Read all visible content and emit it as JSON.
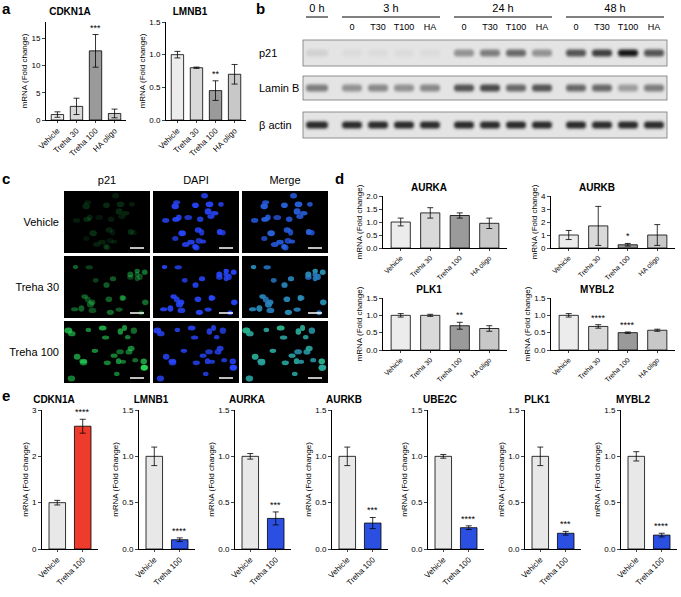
{
  "panel_labels": [
    "a",
    "b",
    "c",
    "d",
    "e"
  ],
  "chart_data": [
    {
      "type": "bar",
      "title": "CDKN1A",
      "y_label": "mRNA (Fold change)",
      "categories": [
        "Vehicle",
        "Treha 30",
        "Treha 100",
        "HA oligo"
      ],
      "values": [
        1.0,
        2.5,
        12.7,
        1.2
      ],
      "errors": [
        0.5,
        1.5,
        3.0,
        0.8
      ],
      "colors": [
        "#ececec",
        "#d9d9d9",
        "#9a9a9a",
        "#c8c8c8"
      ],
      "ylim": [
        0,
        18
      ],
      "yticks": [
        0,
        5,
        10,
        15
      ],
      "annotations": [
        {
          "x": "Treha 100",
          "text": "***"
        }
      ]
    },
    {
      "type": "bar",
      "title": "LMNB1",
      "y_label": "mRNA (Fold change)",
      "categories": [
        "Vehicle",
        "Treha 30",
        "Treha 100",
        "HA oligo"
      ],
      "values": [
        1.0,
        0.8,
        0.45,
        0.7
      ],
      "errors": [
        0.05,
        0.01,
        0.15,
        0.15
      ],
      "colors": [
        "#ececec",
        "#d9d9d9",
        "#9a9a9a",
        "#c8c8c8"
      ],
      "ylim": [
        0,
        1.5
      ],
      "yticks": [
        {
          "value": 0,
          "label": "0.0"
        },
        {
          "value": 0.5,
          "label": "0.5"
        },
        {
          "value": 1,
          "label": "1.0"
        },
        {
          "value": 1.5,
          "label": "1.5"
        }
      ],
      "annotations": [
        {
          "x": "Treha 100",
          "text": "**"
        }
      ]
    },
    {
      "type": "bar",
      "title": "AURKA",
      "y_label": "mRNA (Fold change)",
      "categories": [
        "Vehicle",
        "Treha 30",
        "Treha 100",
        "HA oligo"
      ],
      "values": [
        1.0,
        1.35,
        1.25,
        0.95
      ],
      "errors": [
        0.15,
        0.2,
        0.1,
        0.2
      ],
      "colors": [
        "#ececec",
        "#d9d9d9",
        "#9a9a9a",
        "#c8c8c8"
      ],
      "ylim": [
        0,
        2
      ],
      "yticks": [
        {
          "value": 0,
          "label": "0.0"
        },
        {
          "value": 0.5,
          "label": "0.5"
        },
        {
          "value": 1,
          "label": "1.0"
        },
        {
          "value": 1.5,
          "label": "1.5"
        },
        {
          "value": 2,
          "label": "2.0"
        }
      ],
      "annotations": []
    },
    {
      "type": "bar",
      "title": "AURKB",
      "y_label": "mRNA (Fold change)",
      "categories": [
        "Vehicle",
        "Treha 30",
        "Treha 100",
        "HA oligo"
      ],
      "values": [
        1.0,
        1.7,
        0.25,
        1.0
      ],
      "errors": [
        0.35,
        1.5,
        0.1,
        0.8
      ],
      "colors": [
        "#ececec",
        "#d9d9d9",
        "#9a9a9a",
        "#c8c8c8"
      ],
      "ylim": [
        0,
        4
      ],
      "yticks": [
        0,
        1,
        2,
        3,
        4
      ],
      "annotations": [
        {
          "x": "Treha 100",
          "text": "*"
        }
      ]
    },
    {
      "type": "bar",
      "title": "PLK1",
      "y_label": "mRNA (Fold change)",
      "categories": [
        "Vehicle",
        "Treha 30",
        "Treha 100",
        "HA oligo"
      ],
      "values": [
        1.0,
        1.0,
        0.7,
        0.62
      ],
      "errors": [
        0.05,
        0.03,
        0.1,
        0.08
      ],
      "colors": [
        "#ececec",
        "#d9d9d9",
        "#9a9a9a",
        "#c8c8c8"
      ],
      "ylim": [
        0,
        1.5
      ],
      "yticks": [
        {
          "value": 0,
          "label": "0.0"
        },
        {
          "value": 0.5,
          "label": "0.5"
        },
        {
          "value": 1,
          "label": "1.0"
        },
        {
          "value": 1.5,
          "label": "1.5"
        }
      ],
      "annotations": [
        {
          "x": "Treha 100",
          "text": "**"
        }
      ]
    },
    {
      "type": "bar",
      "title": "MYBL2",
      "y_label": "mRNA (Fold change)",
      "categories": [
        "Vehicle",
        "Treha 30",
        "Treha 100",
        "HA oligo"
      ],
      "values": [
        1.0,
        0.68,
        0.5,
        0.57
      ],
      "errors": [
        0.05,
        0.05,
        0.02,
        0.03
      ],
      "colors": [
        "#ececec",
        "#d9d9d9",
        "#9a9a9a",
        "#c8c8c8"
      ],
      "ylim": [
        0,
        1.5
      ],
      "yticks": [
        {
          "value": 0,
          "label": "0.0"
        },
        {
          "value": 0.5,
          "label": "0.5"
        },
        {
          "value": 1,
          "label": "1.0"
        },
        {
          "value": 1.5,
          "label": "1.5"
        }
      ],
      "annotations": [
        {
          "x": "Treha 30",
          "text": "****"
        },
        {
          "x": "Treha 100",
          "text": "****"
        }
      ]
    },
    {
      "type": "bar",
      "title": "CDKN1A",
      "y_label": "mRNA (Fold change)",
      "categories": [
        "Vehicle",
        "Treha 100"
      ],
      "values": [
        1.0,
        2.65
      ],
      "errors": [
        0.05,
        0.15
      ],
      "colors": [
        "#e8e8e8",
        "#ee3b2b"
      ],
      "ylim": [
        0,
        3
      ],
      "yticks": [
        0,
        1,
        2,
        3
      ],
      "annotations": [
        {
          "x": "Treha 100",
          "text": "****"
        }
      ]
    },
    {
      "type": "bar",
      "title": "LMNB1",
      "y_label": "mRNA (Fold change)",
      "categories": [
        "Vehicle",
        "Treha 100"
      ],
      "values": [
        1.0,
        0.1
      ],
      "errors": [
        0.1,
        0.02
      ],
      "colors": [
        "#e8e8e8",
        "#2b4fe0"
      ],
      "ylim": [
        0,
        1.5
      ],
      "yticks": [
        {
          "value": 0,
          "label": "0.0"
        },
        {
          "value": 0.5,
          "label": "0.5"
        },
        {
          "value": 1,
          "label": "1.0"
        },
        {
          "value": 1.5,
          "label": "1.5"
        }
      ],
      "annotations": [
        {
          "x": "Treha 100",
          "text": "****"
        }
      ]
    },
    {
      "type": "bar",
      "title": "AURKA",
      "y_label": "mRNA (Fold change)",
      "categories": [
        "Vehicle",
        "Treha 100"
      ],
      "values": [
        1.0,
        0.33
      ],
      "errors": [
        0.03,
        0.07
      ],
      "colors": [
        "#e8e8e8",
        "#2b4fe0"
      ],
      "ylim": [
        0,
        1.5
      ],
      "yticks": [
        {
          "value": 0,
          "label": "0.0"
        },
        {
          "value": 0.5,
          "label": "0.5"
        },
        {
          "value": 1,
          "label": "1.0"
        },
        {
          "value": 1.5,
          "label": "1.5"
        }
      ],
      "annotations": [
        {
          "x": "Treha 100",
          "text": "***"
        }
      ]
    },
    {
      "type": "bar",
      "title": "AURKB",
      "y_label": "mRNA (Fold change)",
      "categories": [
        "Vehicle",
        "Treha 100"
      ],
      "values": [
        1.0,
        0.28
      ],
      "errors": [
        0.1,
        0.06
      ],
      "colors": [
        "#e8e8e8",
        "#2b4fe0"
      ],
      "ylim": [
        0,
        1.5
      ],
      "yticks": [
        {
          "value": 0,
          "label": "0.0"
        },
        {
          "value": 0.5,
          "label": "0.5"
        },
        {
          "value": 1,
          "label": "1.0"
        },
        {
          "value": 1.5,
          "label": "1.5"
        }
      ],
      "annotations": [
        {
          "x": "Treha 100",
          "text": "***"
        }
      ]
    },
    {
      "type": "bar",
      "title": "UBE2C",
      "y_label": "mRNA (Fold change)",
      "categories": [
        "Vehicle",
        "Treha 100"
      ],
      "values": [
        1.0,
        0.23
      ],
      "errors": [
        0.02,
        0.02
      ],
      "colors": [
        "#e8e8e8",
        "#2b4fe0"
      ],
      "ylim": [
        0,
        1.5
      ],
      "yticks": [
        {
          "value": 0,
          "label": "0.0"
        },
        {
          "value": 0.5,
          "label": "0.5"
        },
        {
          "value": 1,
          "label": "1.0"
        },
        {
          "value": 1.5,
          "label": "1.5"
        }
      ],
      "annotations": [
        {
          "x": "Treha 100",
          "text": "****"
        }
      ]
    },
    {
      "type": "bar",
      "title": "PLK1",
      "y_label": "mRNA (Fold change)",
      "categories": [
        "Vehicle",
        "Treha 100"
      ],
      "values": [
        1.0,
        0.17
      ],
      "errors": [
        0.1,
        0.02
      ],
      "colors": [
        "#e8e8e8",
        "#2b4fe0"
      ],
      "ylim": [
        0,
        1.5
      ],
      "yticks": [
        {
          "value": 0,
          "label": "0.0"
        },
        {
          "value": 0.5,
          "label": "0.5"
        },
        {
          "value": 1,
          "label": "1.0"
        },
        {
          "value": 1.5,
          "label": "1.5"
        }
      ],
      "annotations": [
        {
          "x": "Treha 100",
          "text": "***"
        }
      ]
    },
    {
      "type": "bar",
      "title": "MYBL2",
      "y_label": "mRNA (Fold change)",
      "categories": [
        "Vehicle",
        "Treha 100"
      ],
      "values": [
        1.0,
        0.15
      ],
      "errors": [
        0.05,
        0.02
      ],
      "colors": [
        "#e8e8e8",
        "#2b4fe0"
      ],
      "ylim": [
        0,
        1.5
      ],
      "yticks": [
        {
          "value": 0,
          "label": "0.0"
        },
        {
          "value": 0.5,
          "label": "0.5"
        },
        {
          "value": 1,
          "label": "1.0"
        },
        {
          "value": 1.5,
          "label": "1.5"
        }
      ],
      "annotations": [
        {
          "x": "Treha 100",
          "text": "****"
        }
      ]
    }
  ],
  "blot": {
    "groups": [
      {
        "label": "0 h",
        "lanes": [
          null
        ]
      },
      {
        "label": "3 h",
        "lanes": [
          "0",
          "T30",
          "T100",
          "HA"
        ]
      },
      {
        "label": "24 h",
        "lanes": [
          "0",
          "T30",
          "T100",
          "HA"
        ]
      },
      {
        "label": "48 h",
        "lanes": [
          "0",
          "T30",
          "T100",
          "HA"
        ]
      }
    ],
    "rows": [
      {
        "label": "p21",
        "intensity": [
          0.1,
          0.05,
          0.05,
          0.05,
          0.05,
          0.4,
          0.5,
          0.6,
          0.4,
          0.7,
          0.8,
          1.0,
          0.7
        ]
      },
      {
        "label": "Lamin B",
        "intensity": [
          0.5,
          0.4,
          0.45,
          0.4,
          0.45,
          0.7,
          0.75,
          0.6,
          0.7,
          0.6,
          0.6,
          0.35,
          0.5
        ]
      },
      {
        "label": "β actin",
        "intensity": [
          0.9,
          0.9,
          0.9,
          0.9,
          0.9,
          0.9,
          0.9,
          0.9,
          0.9,
          0.9,
          0.9,
          0.9,
          0.9
        ]
      }
    ]
  },
  "microscopy": {
    "columns": [
      "p21",
      "DAPI",
      "Merge"
    ],
    "rows": [
      "Vehicle",
      "Treha 30",
      "Treha 100"
    ],
    "p21_signal": [
      0.2,
      0.5,
      0.9
    ]
  }
}
